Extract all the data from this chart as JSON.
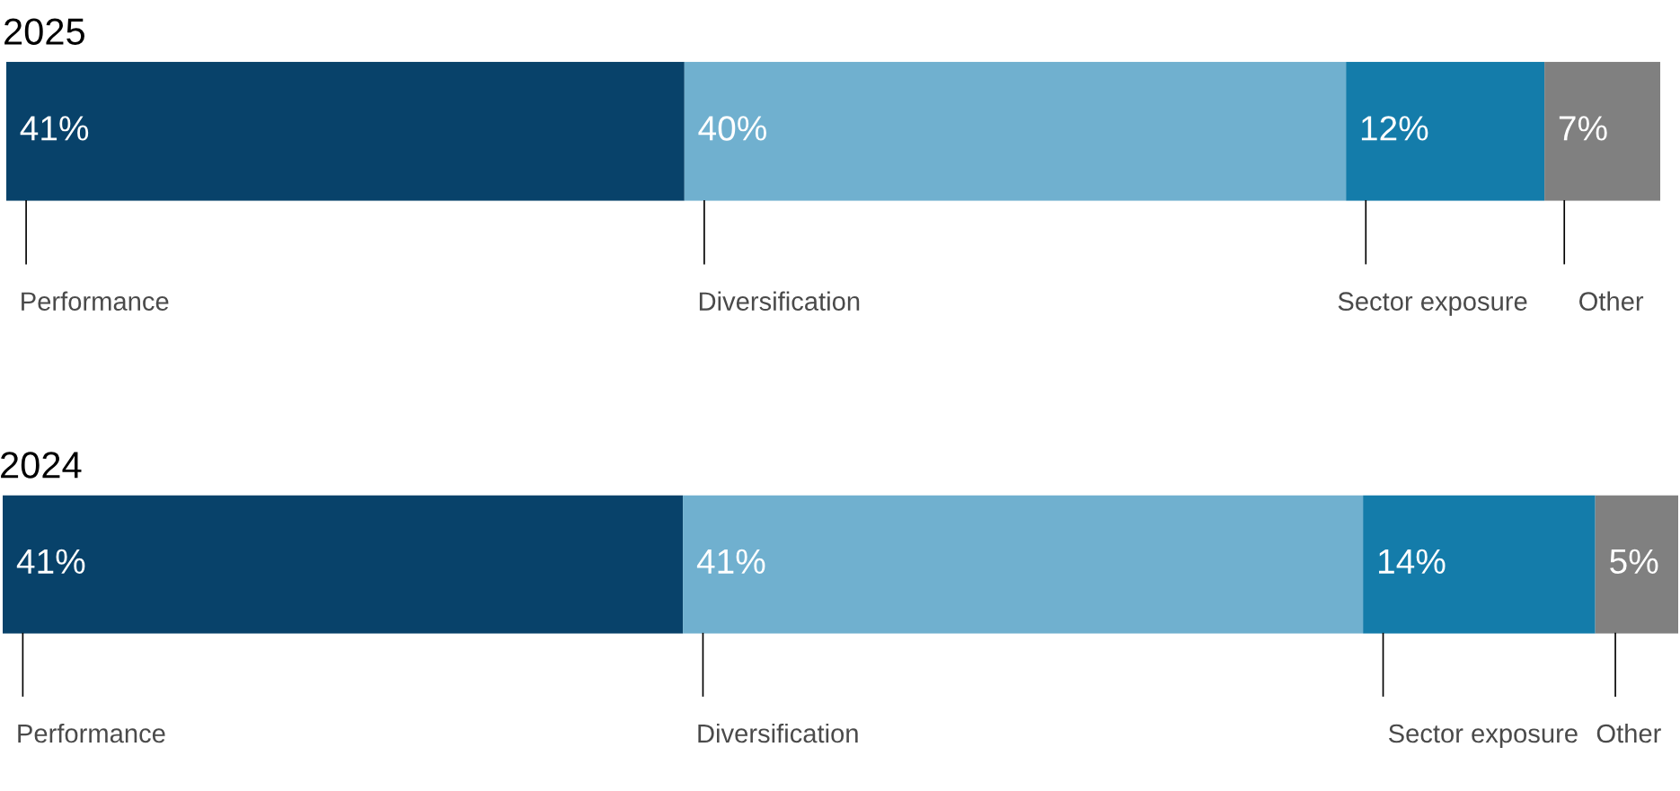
{
  "chart_data": [
    {
      "type": "bar",
      "title": "2025",
      "orientation": "horizontal",
      "stacked": true,
      "categories": [
        null
      ],
      "series": [
        {
          "name": "Performance",
          "color": "#08426a",
          "values": [
            41
          ],
          "value_labels": [
            "41%"
          ]
        },
        {
          "name": "Diversification",
          "color": "#70b0cf",
          "values": [
            40
          ],
          "value_labels": [
            "40%"
          ]
        },
        {
          "name": "Sector exposure",
          "color": "#147caa",
          "values": [
            12
          ],
          "value_labels": [
            "12%"
          ]
        },
        {
          "name": "Other",
          "color": "#808080",
          "values": [
            7
          ],
          "value_labels": [
            "7%"
          ]
        }
      ]
    },
    {
      "type": "bar",
      "title": "2024",
      "orientation": "horizontal",
      "stacked": true,
      "categories": [
        null
      ],
      "series": [
        {
          "name": "Performance",
          "color": "#08426a",
          "values": [
            41
          ],
          "value_labels": [
            "41%"
          ]
        },
        {
          "name": "Diversification",
          "color": "#70b0cf",
          "values": [
            41
          ],
          "value_labels": [
            "41%"
          ]
        },
        {
          "name": "Sector exposure",
          "color": "#147caa",
          "values": [
            14
          ],
          "value_labels": [
            "14%"
          ]
        },
        {
          "name": "Other",
          "color": "#808080",
          "values": [
            5
          ],
          "value_labels": [
            "5%"
          ]
        }
      ]
    }
  ]
}
